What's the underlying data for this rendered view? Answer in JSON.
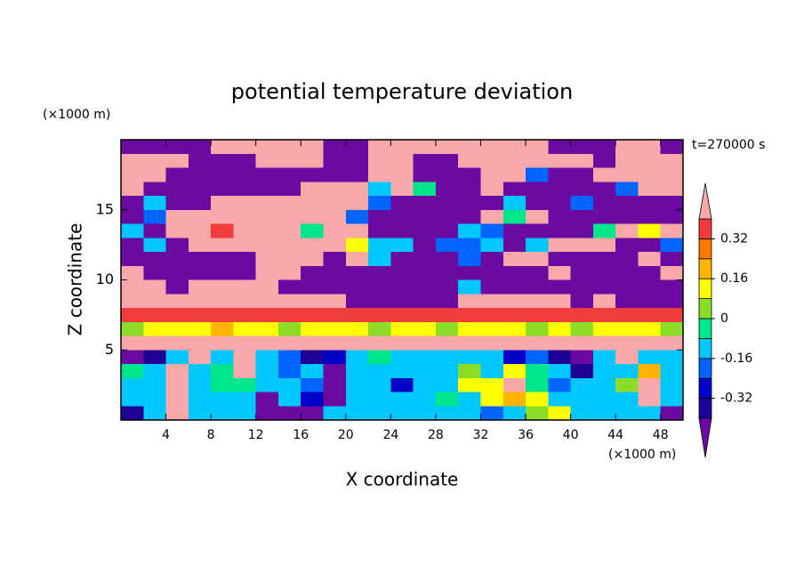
{
  "chart_data": {
    "type": "contour",
    "title": "potential temperature deviation",
    "x_label": "X coordinate",
    "y_label": "Z coordinate",
    "x_unit": "(×1000 m)",
    "y_unit": "(×1000 m)",
    "annotation": "t=270000 s",
    "xlim": [
      0,
      50
    ],
    "ylim": [
      0,
      20
    ],
    "xticks": [
      4,
      8,
      12,
      16,
      20,
      24,
      28,
      32,
      36,
      40,
      44,
      48
    ],
    "yticks": [
      5,
      10,
      15
    ],
    "levels": [
      -0.4,
      -0.32,
      -0.24,
      -0.16,
      -0.08,
      0,
      0.08,
      0.16,
      0.24,
      0.32,
      0.4
    ],
    "colors": [
      "#6a0aa0",
      "#1e0096",
      "#0000c8",
      "#0064ff",
      "#00c8ff",
      "#00e68c",
      "#8cdc28",
      "#ffff00",
      "#ffb400",
      "#ff7800",
      "#f03c3c",
      "#f8a8a8"
    ],
    "colorbar_ticks": [
      -0.32,
      -0.16,
      0,
      0.16,
      0.32
    ],
    "x": [
      1,
      3,
      5,
      7,
      9,
      11,
      13,
      15,
      17,
      19,
      21,
      23,
      25,
      27,
      29,
      31,
      33,
      35,
      37,
      39,
      41,
      43,
      45,
      47,
      49
    ],
    "y": [
      19.5,
      18.5,
      17.5,
      16.5,
      15.5,
      14.5,
      13.5,
      12.5,
      11.5,
      10.5,
      9.5,
      8.5,
      7.5,
      6.5,
      5.5,
      4.5,
      3.5,
      2.5,
      1.5,
      0.5
    ],
    "z": [
      [
        -0.5,
        -0.5,
        -0.5,
        -0.5,
        0.5,
        0.5,
        0.5,
        0.5,
        0.5,
        -0.5,
        -0.5,
        0.5,
        0.5,
        0.5,
        0.5,
        0.5,
        0.5,
        0.5,
        0.5,
        -0.5,
        -0.5,
        -0.5,
        0.5,
        0.5,
        -0.5
      ],
      [
        0.5,
        0.5,
        0.5,
        -0.5,
        -0.5,
        -0.5,
        0.5,
        0.5,
        0.5,
        -0.5,
        -0.5,
        0.5,
        0.5,
        -0.5,
        -0.5,
        0.5,
        0.5,
        0.5,
        0.5,
        0.5,
        0.5,
        -0.5,
        0.5,
        0.5,
        0.5
      ],
      [
        0.5,
        0.5,
        -0.5,
        -0.5,
        -0.5,
        -0.5,
        -0.5,
        -0.5,
        -0.5,
        -0.5,
        -0.5,
        0.5,
        0.5,
        -0.5,
        -0.5,
        -0.5,
        0.5,
        0.5,
        -0.2,
        -0.5,
        -0.5,
        0.5,
        0.5,
        0.5,
        0.5
      ],
      [
        0.5,
        -0.5,
        -0.5,
        -0.5,
        -0.5,
        -0.5,
        -0.5,
        -0.5,
        0.5,
        0.5,
        0.5,
        -0.12,
        0.5,
        -0.04,
        -0.5,
        -0.5,
        0.5,
        -0.5,
        -0.5,
        -0.5,
        -0.5,
        -0.5,
        -0.2,
        0.5,
        0.5
      ],
      [
        -0.5,
        -0.12,
        -0.5,
        -0.5,
        0.5,
        0.5,
        0.5,
        0.5,
        0.5,
        0.5,
        0.5,
        -0.2,
        -0.5,
        -0.5,
        -0.5,
        -0.5,
        -0.5,
        -0.12,
        -0.5,
        -0.5,
        -0.2,
        -0.5,
        -0.5,
        -0.5,
        -0.5
      ],
      [
        -0.5,
        -0.2,
        0.5,
        0.5,
        0.5,
        0.5,
        0.5,
        0.5,
        0.5,
        0.5,
        -0.2,
        -0.5,
        -0.5,
        -0.5,
        -0.5,
        -0.5,
        0.5,
        -0.04,
        0.5,
        -0.5,
        -0.5,
        -0.5,
        -0.5,
        -0.5,
        -0.5
      ],
      [
        -0.12,
        -0.5,
        0.5,
        0.5,
        0.36,
        0.5,
        0.5,
        0.5,
        -0.04,
        0.5,
        0.5,
        -0.5,
        -0.5,
        -0.5,
        -0.5,
        -0.12,
        -0.2,
        -0.5,
        -0.5,
        -0.5,
        -0.5,
        -0.04,
        0.5,
        0.12,
        0.5
      ],
      [
        -0.5,
        -0.12,
        -0.5,
        0.5,
        0.5,
        0.5,
        0.5,
        0.5,
        0.5,
        0.5,
        0.12,
        -0.12,
        -0.12,
        -0.5,
        -0.2,
        -0.2,
        -0.12,
        -0.5,
        -0.12,
        0.5,
        0.5,
        0.5,
        -0.5,
        -0.5,
        -0.2
      ],
      [
        -0.5,
        -0.5,
        -0.5,
        -0.5,
        -0.5,
        -0.5,
        0.5,
        0.5,
        0.5,
        -0.5,
        0.5,
        -0.12,
        -0.5,
        -0.5,
        -0.5,
        -0.2,
        -0.5,
        0.5,
        0.5,
        -0.5,
        -0.5,
        -0.5,
        -0.5,
        0.5,
        -0.5
      ],
      [
        0.5,
        -0.5,
        -0.5,
        -0.5,
        -0.5,
        -0.5,
        0.5,
        0.5,
        -0.5,
        -0.5,
        -0.5,
        -0.5,
        -0.5,
        -0.5,
        -0.5,
        -0.5,
        -0.5,
        -0.5,
        -0.5,
        0.5,
        -0.5,
        -0.5,
        -0.5,
        -0.5,
        0.5
      ],
      [
        0.5,
        0.5,
        -0.5,
        0.5,
        0.5,
        0.5,
        0.5,
        -0.5,
        -0.5,
        -0.5,
        -0.5,
        -0.5,
        -0.5,
        -0.5,
        -0.5,
        -0.12,
        -0.5,
        -0.5,
        -0.5,
        -0.5,
        -0.5,
        -0.5,
        -0.5,
        -0.5,
        -0.5
      ],
      [
        0.5,
        0.5,
        0.5,
        0.5,
        0.5,
        0.5,
        0.5,
        0.5,
        0.5,
        0.5,
        -0.5,
        -0.5,
        -0.5,
        -0.5,
        -0.5,
        0.5,
        0.5,
        0.5,
        0.5,
        0.5,
        -0.5,
        0.5,
        -0.5,
        -0.5,
        -0.5
      ],
      [
        0.36,
        0.36,
        0.36,
        0.36,
        0.36,
        0.36,
        0.36,
        0.36,
        0.36,
        0.36,
        0.36,
        0.36,
        0.36,
        0.36,
        0.36,
        0.36,
        0.36,
        0.36,
        0.36,
        0.36,
        0.36,
        0.36,
        0.36,
        0.36,
        0.36
      ],
      [
        0.04,
        0.12,
        0.12,
        0.12,
        0.2,
        0.12,
        0.12,
        0.04,
        0.12,
        0.12,
        0.12,
        0.04,
        0.12,
        0.12,
        0.04,
        0.12,
        0.12,
        0.12,
        0.04,
        0.12,
        0.04,
        0.12,
        0.12,
        0.12,
        0.04
      ],
      [
        0.5,
        0.5,
        0.5,
        0.5,
        0.5,
        0.5,
        0.5,
        0.5,
        0.5,
        0.5,
        0.5,
        0.5,
        0.5,
        0.5,
        0.5,
        0.5,
        0.5,
        0.5,
        0.5,
        0.5,
        0.5,
        0.5,
        0.5,
        0.5,
        0.5
      ],
      [
        -0.5,
        -0.36,
        -0.12,
        0.5,
        -0.12,
        0.5,
        -0.12,
        -0.2,
        -0.36,
        -0.28,
        -0.12,
        -0.04,
        -0.12,
        -0.12,
        -0.12,
        -0.12,
        -0.12,
        -0.28,
        -0.2,
        -0.36,
        -0.5,
        -0.12,
        0.5,
        -0.12,
        -0.12
      ],
      [
        -0.04,
        -0.12,
        0.5,
        -0.12,
        -0.04,
        0.5,
        -0.12,
        -0.2,
        -0.12,
        -0.5,
        -0.12,
        -0.12,
        -0.12,
        -0.12,
        -0.12,
        0.04,
        -0.12,
        0.12,
        -0.04,
        -0.12,
        -0.36,
        -0.12,
        -0.12,
        0.2,
        -0.12
      ],
      [
        -0.12,
        -0.12,
        0.5,
        -0.12,
        -0.04,
        -0.04,
        -0.12,
        -0.12,
        -0.2,
        -0.5,
        -0.12,
        -0.12,
        -0.28,
        -0.12,
        -0.12,
        0.12,
        0.12,
        0.5,
        -0.04,
        -0.2,
        -0.12,
        -0.12,
        0.04,
        0.5,
        -0.12
      ],
      [
        -0.12,
        -0.12,
        0.5,
        -0.12,
        -0.12,
        -0.12,
        -0.5,
        -0.12,
        -0.28,
        -0.5,
        -0.12,
        -0.12,
        -0.12,
        -0.12,
        -0.04,
        -0.12,
        0.12,
        0.2,
        0.12,
        -0.12,
        -0.12,
        -0.12,
        -0.12,
        0.5,
        -0.12
      ],
      [
        -0.36,
        -0.12,
        0.5,
        -0.12,
        -0.12,
        -0.12,
        -0.5,
        -0.5,
        -0.5,
        -0.12,
        -0.12,
        -0.12,
        -0.12,
        -0.12,
        -0.12,
        -0.12,
        -0.2,
        -0.12,
        0.04,
        0.12,
        -0.12,
        -0.12,
        -0.12,
        -0.12,
        -0.5
      ]
    ]
  }
}
